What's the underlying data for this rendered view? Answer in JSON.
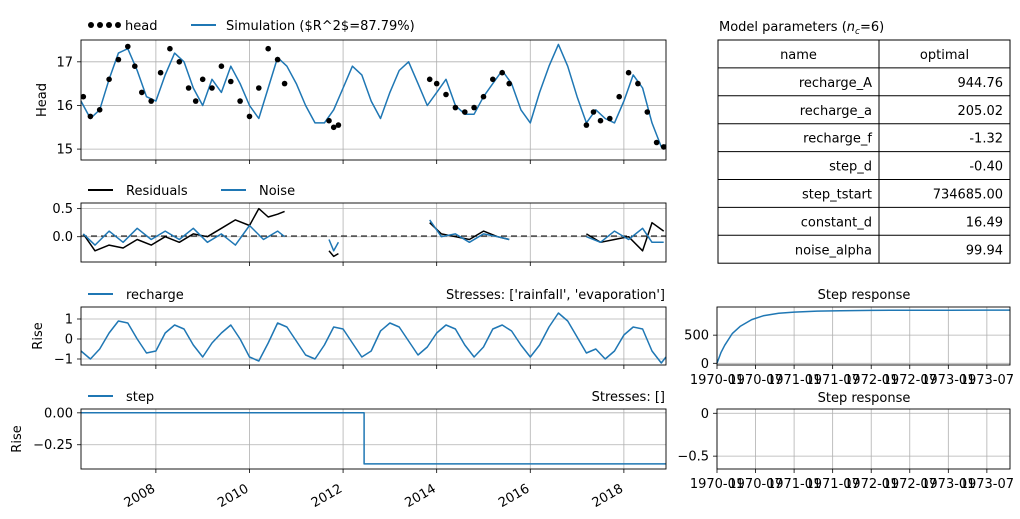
{
  "chart_data": [
    {
      "type": "line",
      "panel": "head",
      "ylabel": "Head",
      "ylim": [
        14.75,
        17.5
      ],
      "yticks": [
        "15",
        "16",
        "17"
      ],
      "xlim": [
        2006.4,
        2018.9
      ],
      "grid": true,
      "legend": "top-left, outside",
      "legend_entries": [
        "head",
        "Simulation ($R^2$=87.79%)"
      ],
      "series": [
        {
          "name": "head",
          "style": "dots",
          "color": "#000000",
          "segments": [
            {
              "x": [
                2006.45,
                2006.6,
                2006.8,
                2007.0,
                2007.2,
                2007.4,
                2007.55,
                2007.7,
                2007.9,
                2008.1,
                2008.3,
                2008.5,
                2008.7,
                2008.85,
                2009.0,
                2009.2,
                2009.4,
                2009.6,
                2009.8,
                2010.0,
                2010.2,
                2010.4,
                2010.6,
                2010.75
              ],
              "y": [
                16.2,
                15.75,
                15.9,
                16.6,
                17.05,
                17.35,
                16.9,
                16.3,
                16.1,
                16.75,
                17.3,
                17.0,
                16.4,
                16.1,
                16.6,
                16.4,
                16.9,
                16.55,
                16.1,
                15.75,
                16.4,
                17.3,
                17.05,
                16.5
              ]
            },
            {
              "x": [
                2011.7,
                2011.8,
                2011.9
              ],
              "y": [
                15.65,
                15.5,
                15.55
              ]
            },
            {
              "x": [
                2013.85,
                2014.0,
                2014.2,
                2014.4,
                2014.6,
                2014.8,
                2015.0,
                2015.2,
                2015.4,
                2015.55
              ],
              "y": [
                16.6,
                16.5,
                16.25,
                15.95,
                15.85,
                15.95,
                16.2,
                16.6,
                16.75,
                16.5
              ]
            },
            {
              "x": [
                2017.2,
                2017.35,
                2017.5,
                2017.7,
                2017.9,
                2018.1,
                2018.3,
                2018.5,
                2018.7,
                2018.85
              ],
              "y": [
                15.55,
                15.85,
                15.65,
                15.7,
                16.2,
                16.75,
                16.5,
                15.85,
                15.15,
                15.05
              ]
            }
          ]
        },
        {
          "name": "Simulation ($R^2$=87.79%)",
          "style": "line",
          "color": "#1f77b4",
          "x": [
            2006.4,
            2006.6,
            2006.8,
            2007.0,
            2007.2,
            2007.4,
            2007.6,
            2007.8,
            2008.0,
            2008.2,
            2008.4,
            2008.6,
            2008.8,
            2009.0,
            2009.2,
            2009.4,
            2009.6,
            2009.8,
            2010.0,
            2010.2,
            2010.4,
            2010.6,
            2010.8,
            2011.0,
            2011.2,
            2011.4,
            2011.6,
            2011.8,
            2012.0,
            2012.2,
            2012.4,
            2012.6,
            2012.8,
            2013.0,
            2013.2,
            2013.4,
            2013.6,
            2013.8,
            2014.0,
            2014.2,
            2014.4,
            2014.6,
            2014.8,
            2015.0,
            2015.2,
            2015.4,
            2015.6,
            2015.8,
            2016.0,
            2016.2,
            2016.4,
            2016.6,
            2016.8,
            2017.0,
            2017.2,
            2017.4,
            2017.6,
            2017.8,
            2018.0,
            2018.2,
            2018.4,
            2018.6,
            2018.8,
            2018.9
          ],
          "y": [
            16.1,
            15.7,
            15.9,
            16.6,
            17.2,
            17.3,
            16.8,
            16.2,
            16.1,
            16.7,
            17.2,
            17.0,
            16.4,
            16.0,
            16.6,
            16.3,
            16.9,
            16.5,
            16.0,
            15.7,
            16.4,
            17.1,
            16.9,
            16.5,
            16.0,
            15.6,
            15.6,
            15.9,
            16.4,
            16.9,
            16.7,
            16.1,
            15.7,
            16.3,
            16.8,
            17.0,
            16.5,
            16.0,
            16.3,
            16.6,
            16.0,
            15.8,
            15.8,
            16.2,
            16.5,
            16.8,
            16.5,
            15.9,
            15.6,
            16.3,
            16.9,
            17.4,
            16.9,
            16.2,
            15.6,
            15.9,
            15.7,
            15.6,
            16.1,
            16.7,
            16.4,
            15.6,
            15.05,
            15.1
          ]
        }
      ]
    },
    {
      "type": "line",
      "panel": "residuals",
      "ylim": [
        -0.45,
        0.6
      ],
      "yticks": [
        "0.5",
        "0.0"
      ],
      "xlim": [
        2006.4,
        2018.9
      ],
      "grid": true,
      "legend": "top-left, outside",
      "legend_entries": [
        "Residuals",
        "Noise"
      ],
      "zero_line": true,
      "series": [
        {
          "name": "Residuals",
          "color": "#000000",
          "segments": [
            {
              "x": [
                2006.45,
                2006.7,
                2007.0,
                2007.3,
                2007.6,
                2007.9,
                2008.2,
                2008.5,
                2008.8,
                2009.1,
                2009.4,
                2009.7,
                2010.0,
                2010.2,
                2010.4,
                2010.6,
                2010.75
              ],
              "y": [
                0.05,
                -0.25,
                -0.15,
                -0.2,
                -0.05,
                -0.15,
                0.0,
                -0.1,
                0.05,
                0.0,
                0.15,
                0.3,
                0.2,
                0.5,
                0.35,
                0.4,
                0.45
              ]
            },
            {
              "x": [
                2011.7,
                2011.8,
                2011.9
              ],
              "y": [
                -0.25,
                -0.35,
                -0.3
              ]
            },
            {
              "x": [
                2013.85,
                2014.1,
                2014.4,
                2014.7,
                2015.0,
                2015.3,
                2015.55
              ],
              "y": [
                0.25,
                0.05,
                0.0,
                -0.05,
                0.1,
                0.0,
                -0.05
              ]
            },
            {
              "x": [
                2017.2,
                2017.5,
                2017.8,
                2018.1,
                2018.4,
                2018.6,
                2018.85
              ],
              "y": [
                0.05,
                -0.1,
                -0.05,
                0.0,
                -0.25,
                0.25,
                0.1
              ]
            }
          ]
        },
        {
          "name": "Noise",
          "color": "#1f77b4",
          "segments": [
            {
              "x": [
                2006.45,
                2006.7,
                2007.0,
                2007.3,
                2007.6,
                2007.9,
                2008.2,
                2008.5,
                2008.8,
                2009.1,
                2009.4,
                2009.7,
                2010.0,
                2010.3,
                2010.6,
                2010.75
              ],
              "y": [
                0.05,
                -0.15,
                0.1,
                -0.1,
                0.15,
                -0.05,
                0.1,
                -0.05,
                0.15,
                -0.1,
                0.05,
                -0.15,
                0.2,
                -0.05,
                0.1,
                0.0
              ]
            },
            {
              "x": [
                2011.7,
                2011.8,
                2011.9
              ],
              "y": [
                -0.05,
                -0.25,
                -0.1
              ]
            },
            {
              "x": [
                2013.85,
                2014.1,
                2014.4,
                2014.7,
                2015.0,
                2015.3,
                2015.55
              ],
              "y": [
                0.3,
                0.0,
                0.05,
                -0.1,
                0.05,
                0.0,
                -0.05
              ]
            },
            {
              "x": [
                2017.2,
                2017.5,
                2017.8,
                2018.1,
                2018.4,
                2018.6,
                2018.85
              ],
              "y": [
                0.0,
                -0.1,
                0.1,
                -0.05,
                0.15,
                -0.1,
                -0.1
              ]
            }
          ]
        }
      ]
    },
    {
      "type": "line",
      "panel": "recharge",
      "ylabel": "Rise",
      "ylim": [
        -1.3,
        1.6
      ],
      "yticks": [
        "1",
        "0",
        "−1"
      ],
      "xlim": [
        2006.4,
        2018.9
      ],
      "grid": true,
      "legend": "top-left, outside",
      "legend_entries": [
        "recharge"
      ],
      "stresses_label": "Stresses: ['rainfall', 'evaporation']",
      "series": [
        {
          "name": "recharge",
          "color": "#1f77b4",
          "x": [
            2006.4,
            2006.6,
            2006.8,
            2007.0,
            2007.2,
            2007.4,
            2007.6,
            2007.8,
            2008.0,
            2008.2,
            2008.4,
            2008.6,
            2008.8,
            2009.0,
            2009.2,
            2009.4,
            2009.6,
            2009.8,
            2010.0,
            2010.2,
            2010.4,
            2010.6,
            2010.8,
            2011.0,
            2011.2,
            2011.4,
            2011.6,
            2011.8,
            2012.0,
            2012.2,
            2012.4,
            2012.6,
            2012.8,
            2013.0,
            2013.2,
            2013.4,
            2013.6,
            2013.8,
            2014.0,
            2014.2,
            2014.4,
            2014.6,
            2014.8,
            2015.0,
            2015.2,
            2015.4,
            2015.6,
            2015.8,
            2016.0,
            2016.2,
            2016.4,
            2016.6,
            2016.8,
            2017.0,
            2017.2,
            2017.4,
            2017.6,
            2017.8,
            2018.0,
            2018.2,
            2018.4,
            2018.6,
            2018.8,
            2018.9
          ],
          "y": [
            -0.6,
            -1.0,
            -0.5,
            0.3,
            0.9,
            0.8,
            0.0,
            -0.7,
            -0.6,
            0.3,
            0.7,
            0.5,
            -0.3,
            -0.9,
            -0.2,
            0.3,
            0.7,
            0.0,
            -0.9,
            -1.1,
            -0.2,
            0.8,
            0.6,
            -0.1,
            -0.8,
            -1.0,
            -0.3,
            0.6,
            0.5,
            -0.2,
            -0.9,
            -0.6,
            0.4,
            0.8,
            0.6,
            -0.1,
            -0.8,
            -0.4,
            0.3,
            0.7,
            0.5,
            -0.3,
            -0.9,
            -0.4,
            0.5,
            0.7,
            0.4,
            -0.3,
            -0.9,
            -0.3,
            0.6,
            1.3,
            0.9,
            0.1,
            -0.7,
            -0.5,
            -1.0,
            -0.6,
            0.2,
            0.6,
            0.5,
            -0.6,
            -1.2,
            -0.9
          ]
        }
      ]
    },
    {
      "type": "line",
      "panel": "step",
      "ylabel": "Rise",
      "ylim": [
        -0.44,
        0.03
      ],
      "yticks": [
        "0.00",
        "−0.25"
      ],
      "xlim": [
        2006.4,
        2018.9
      ],
      "xticks": [
        "2008",
        "2010",
        "2012",
        "2014",
        "2016",
        "2018"
      ],
      "grid": true,
      "legend": "top-left, outside",
      "legend_entries": [
        "step"
      ],
      "stresses_label": "Stresses: []",
      "series": [
        {
          "name": "step",
          "color": "#1f77b4",
          "x": [
            2006.4,
            2012.45,
            2012.45,
            2018.9
          ],
          "y": [
            0.0,
            0.0,
            -0.4,
            -0.4
          ]
        }
      ]
    },
    {
      "type": "line",
      "panel": "step_response_recharge",
      "title": "Step response",
      "ylim": [
        -30,
        1000
      ],
      "yticks": [
        "500",
        "0"
      ],
      "xticks": [
        "1970-01",
        "1970-07",
        "1971-01",
        "1971-07",
        "1972-01",
        "1972-07",
        "1973-01",
        "1973-07"
      ],
      "grid": true,
      "series": [
        {
          "name": "",
          "color": "#1f77b4",
          "x": [
            0,
            0.05,
            0.1,
            0.2,
            0.3,
            0.45,
            0.6,
            0.8,
            1.0,
            1.3,
            1.6,
            2.0,
            2.5,
            3.0,
            3.5,
            3.8
          ],
          "y": [
            0,
            188,
            320,
            532,
            655,
            777,
            844,
            889,
            910,
            927,
            935,
            940,
            943,
            944,
            944.7,
            944.76
          ]
        }
      ]
    },
    {
      "type": "line",
      "panel": "step_response_step",
      "title": "Step response",
      "ylim": [
        -0.65,
        0.05
      ],
      "yticks": [
        "0",
        "−0.5"
      ],
      "xticks": [
        "1970-01",
        "1970-07",
        "1971-01",
        "1971-07",
        "1972-01",
        "1972-07",
        "1973-01",
        "1973-07"
      ],
      "grid": true,
      "series": []
    },
    {
      "type": "table",
      "title": "Model parameters ($n_c$=6)",
      "columns": [
        "name",
        "optimal"
      ],
      "rows": [
        [
          "recharge_A",
          "944.76"
        ],
        [
          "recharge_a",
          "205.02"
        ],
        [
          "recharge_f",
          "-1.32"
        ],
        [
          "step_d",
          "-0.40"
        ],
        [
          "step_tstart",
          "734685.00"
        ],
        [
          "constant_d",
          "16.49"
        ],
        [
          "noise_alpha",
          "99.94"
        ]
      ]
    }
  ]
}
